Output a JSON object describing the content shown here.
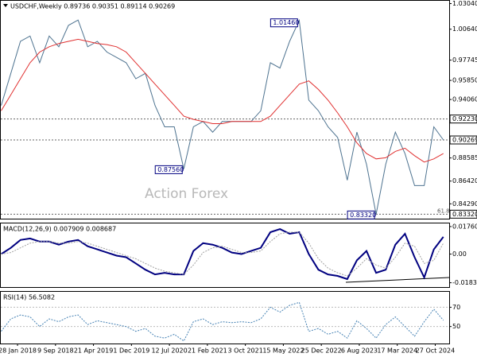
{
  "chart_data": [
    {
      "type": "line",
      "title": "USDCHF,Weekly  0.89736 0.90351 0.89114 0.90269",
      "watermark": "Action Forex",
      "fib_label": "61.8",
      "xlim": [
        -0.04,
        46.6
      ],
      "xticks": [
        {
          "value": 1.7,
          "label": "28 Jan 2018"
        },
        {
          "value": 5.65,
          "label": "9 Sep 2018"
        },
        {
          "value": 9.6,
          "label": "21 Apr 2019"
        },
        {
          "value": 13.55,
          "label": "1 Dec 2019"
        },
        {
          "value": 17.5,
          "label": "12 Jul 2020"
        },
        {
          "value": 21.45,
          "label": "21 Feb 2021"
        },
        {
          "value": 25.4,
          "label": "3 Oct 2021"
        },
        {
          "value": 29.35,
          "label": "15 May 2022"
        },
        {
          "value": 33.3,
          "label": "25 Dec 2022"
        },
        {
          "value": 37.25,
          "label": "6 Aug 2023"
        },
        {
          "value": 41.2,
          "label": "17 Mar 2024"
        },
        {
          "value": 45.15,
          "label": "27 Oct 2024"
        }
      ],
      "ylim": [
        0.829,
        1.033
      ],
      "yticks": [
        {
          "value": 1.0304,
          "label": "1.03040"
        },
        {
          "value": 1.0064,
          "label": "1.00640"
        },
        {
          "value": 0.97745,
          "label": "0.97745"
        },
        {
          "value": 0.9585,
          "label": "0.95850"
        },
        {
          "value": 0.9406,
          "label": "0.94060"
        },
        {
          "value": 0.88585,
          "label": "0.88585"
        },
        {
          "value": 0.8642,
          "label": "0.86420"
        },
        {
          "value": 0.8429,
          "label": "0.84290"
        }
      ],
      "levels": [
        {
          "value": 0.9223,
          "label": "0.92230"
        },
        {
          "value": 0.90269,
          "label": "0.90269"
        },
        {
          "value": 0.8332,
          "label": "0.83320"
        }
      ],
      "annotations": [
        {
          "value": 1.0146,
          "label": "1.01460"
        },
        {
          "value": 0.8756,
          "label": "0.87560"
        },
        {
          "value": 0.8332,
          "label": "0.83320"
        }
      ],
      "series": [
        {
          "color": "#4e7390",
          "values": [
            0.935,
            0.965,
            0.995,
            1.0,
            0.975,
            1.0,
            0.99,
            1.01,
            1.015,
            0.99,
            0.995,
            0.985,
            0.98,
            0.975,
            0.96,
            0.965,
            0.935,
            0.915,
            0.915,
            0.8756,
            0.915,
            0.92,
            0.91,
            0.92,
            0.92,
            0.92,
            0.92,
            0.93,
            0.975,
            0.97,
            0.995,
            1.0146,
            0.94,
            0.93,
            0.915,
            0.905,
            0.865,
            0.91,
            0.88,
            0.8332,
            0.88,
            0.91,
            0.89,
            0.86,
            0.86,
            0.915,
            0.90269
          ]
        },
        {
          "color": "#e03030",
          "values": [
            0.93,
            0.945,
            0.96,
            0.975,
            0.985,
            0.99,
            0.993,
            0.995,
            0.997,
            0.995,
            0.993,
            0.992,
            0.99,
            0.985,
            0.975,
            0.965,
            0.955,
            0.945,
            0.935,
            0.925,
            0.922,
            0.92,
            0.918,
            0.918,
            0.92,
            0.92,
            0.92,
            0.92,
            0.925,
            0.935,
            0.945,
            0.955,
            0.958,
            0.95,
            0.94,
            0.928,
            0.915,
            0.9,
            0.89,
            0.885,
            0.886,
            0.892,
            0.895,
            0.888,
            0.882,
            0.885,
            0.89
          ]
        }
      ]
    },
    {
      "type": "line",
      "title": "MACD(12,26,9) 0.007909 0.008687",
      "xlim": [
        -0.04,
        46.6
      ],
      "ylim": [
        -0.0211,
        0.0196
      ],
      "yticks": [
        0.017603,
        {
          "value": 0,
          "label": "0.00"
        },
        -0.01834
      ],
      "series": [
        {
          "color": "#000080",
          "width": 2,
          "values": [
            0,
            0.004,
            0.009,
            0.01,
            0.008,
            0.008,
            0.006,
            0.008,
            0.009,
            0.005,
            0.003,
            0.001,
            -0.001,
            -0.002,
            -0.006,
            -0.01,
            -0.013,
            -0.012,
            -0.013,
            -0.013,
            0.002,
            0.007,
            0.006,
            0.004,
            0.001,
            0,
            0.002,
            0.004,
            0.014,
            0.016,
            0.013,
            0.014,
            0,
            -0.01,
            -0.013,
            -0.014,
            -0.016,
            -0.004,
            0.002,
            -0.012,
            -0.01,
            0.006,
            0.013,
            -0.002,
            -0.015,
            0.003,
            0.011
          ]
        },
        {
          "color": "#a0a0a0",
          "dashed": true,
          "values": [
            0,
            0.001,
            0.004,
            0.007,
            0.008,
            0.008,
            0.007,
            0.007,
            0.008,
            0.007,
            0.005,
            0.003,
            0.001,
            -0.001,
            -0.003,
            -0.006,
            -0.009,
            -0.011,
            -0.012,
            -0.013,
            -0.007,
            0.001,
            0.004,
            0.005,
            0.003,
            0.001,
            0.001,
            0.002,
            0.008,
            0.013,
            0.014,
            0.014,
            0.007,
            -0.003,
            -0.009,
            -0.012,
            -0.014,
            -0.009,
            -0.003,
            -0.007,
            -0.009,
            -0.002,
            0.007,
            0.005,
            -0.006,
            -0.004,
            0.007
          ]
        }
      ]
    },
    {
      "type": "line",
      "title": "RSI(14) 56.5082",
      "xlim": [
        -0.04,
        46.6
      ],
      "ylim": [
        32.4,
        86
      ],
      "yticks": [
        70,
        50
      ],
      "series": [
        {
          "color": "#4682b4",
          "dashed": true,
          "values": [
            45,
            58,
            62,
            60,
            50,
            58,
            55,
            60,
            62,
            52,
            56,
            54,
            52,
            50,
            45,
            48,
            40,
            38,
            42,
            35,
            55,
            58,
            52,
            55,
            54,
            55,
            54,
            58,
            70,
            65,
            72,
            75,
            45,
            48,
            42,
            45,
            38,
            56,
            48,
            38,
            52,
            60,
            50,
            40,
            55,
            68,
            56.5
          ]
        }
      ]
    }
  ]
}
